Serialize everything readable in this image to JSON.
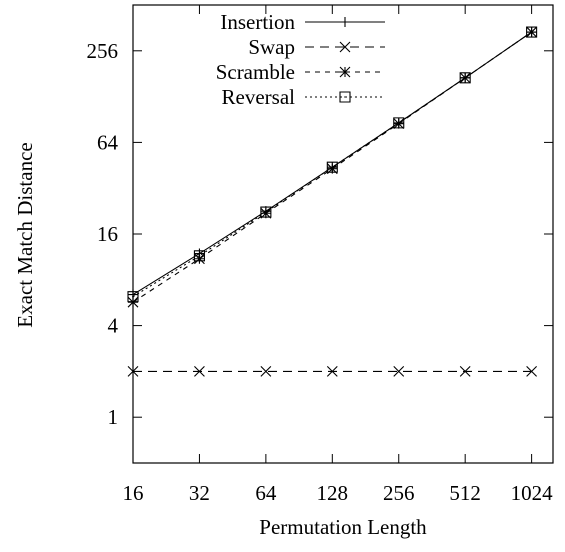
{
  "chart_data": {
    "type": "line",
    "xlabel": "Permutation Length",
    "ylabel": "Exact Match Distance",
    "x": [
      16,
      32,
      64,
      128,
      256,
      512,
      1024
    ],
    "series": [
      {
        "name": "Insertion",
        "color": "#000000",
        "dash": "none",
        "marker": "plus",
        "values": [
          6.4,
          11.9,
          22.6,
          44,
          86,
          170,
          340
        ]
      },
      {
        "name": "Swap",
        "color": "#000000",
        "dash": "9,6",
        "marker": "cross",
        "values": [
          2,
          2,
          2,
          2,
          2,
          2,
          2
        ]
      },
      {
        "name": "Scramble",
        "color": "#000000",
        "dash": "5,5",
        "marker": "star",
        "values": [
          5.7,
          11,
          21.9,
          43,
          85,
          170,
          340
        ]
      },
      {
        "name": "Reversal",
        "color": "#000000",
        "dash": "2,3",
        "marker": "box",
        "values": [
          6.2,
          11.5,
          22.3,
          44,
          86,
          170,
          340
        ]
      }
    ],
    "xscale": "log",
    "yscale": "log",
    "xlim": [
      16,
      1280
    ],
    "ylim": [
      0.5,
      512
    ],
    "xticks": [
      16,
      32,
      64,
      128,
      256,
      512,
      1024
    ],
    "yticks": [
      1,
      4,
      16,
      64,
      256
    ],
    "legend": "top-left"
  }
}
